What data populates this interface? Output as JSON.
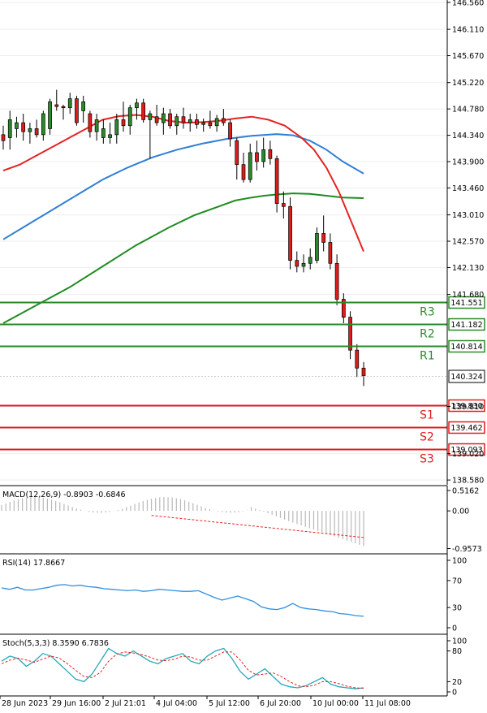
{
  "chart_data": [
    {
      "type": "candlestick",
      "title": "",
      "y_ticks": [
        "146.560",
        "146.110",
        "145.670",
        "145.220",
        "144.780",
        "144.340",
        "143.900",
        "143.460",
        "143.010",
        "142.570",
        "142.130",
        "141.680",
        "139.810",
        "139.020",
        "138.580"
      ],
      "ylim": [
        138.5,
        146.6
      ],
      "x_labels": [
        "28 Jun 2023",
        "29 Jun 16:00",
        "2 Jul 21:01",
        "4 Jul 04:00",
        "5 Jul 12:00",
        "6 Jul 20:00",
        "10 Jul 00:00",
        "11 Jul 08:00"
      ],
      "candles": [
        {
          "o": 144.35,
          "h": 144.5,
          "l": 144.1,
          "c": 144.25
        },
        {
          "o": 144.3,
          "h": 144.75,
          "l": 144.1,
          "c": 144.6
        },
        {
          "o": 144.45,
          "h": 144.65,
          "l": 144.3,
          "c": 144.55
        },
        {
          "o": 144.55,
          "h": 144.7,
          "l": 144.25,
          "c": 144.4
        },
        {
          "o": 144.4,
          "h": 144.55,
          "l": 144.2,
          "c": 144.45
        },
        {
          "o": 144.45,
          "h": 144.6,
          "l": 144.3,
          "c": 144.35
        },
        {
          "o": 144.35,
          "h": 144.75,
          "l": 144.25,
          "c": 144.7
        },
        {
          "o": 144.45,
          "h": 144.95,
          "l": 144.35,
          "c": 144.9
        },
        {
          "o": 144.85,
          "h": 145.1,
          "l": 144.75,
          "c": 144.82
        },
        {
          "o": 144.82,
          "h": 144.85,
          "l": 144.6,
          "c": 144.8
        },
        {
          "o": 144.8,
          "h": 145.05,
          "l": 144.7,
          "c": 144.95
        },
        {
          "o": 144.95,
          "h": 145.0,
          "l": 144.5,
          "c": 144.55
        },
        {
          "o": 144.75,
          "h": 145.0,
          "l": 144.55,
          "c": 144.9
        },
        {
          "o": 144.7,
          "h": 144.75,
          "l": 144.3,
          "c": 144.4
        },
        {
          "o": 144.4,
          "h": 144.7,
          "l": 144.25,
          "c": 144.6
        },
        {
          "o": 144.3,
          "h": 144.6,
          "l": 144.2,
          "c": 144.45
        },
        {
          "o": 144.3,
          "h": 144.55,
          "l": 144.2,
          "c": 144.35
        },
        {
          "o": 144.35,
          "h": 144.7,
          "l": 144.2,
          "c": 144.6
        },
        {
          "o": 144.6,
          "h": 144.9,
          "l": 144.4,
          "c": 144.5
        },
        {
          "o": 144.5,
          "h": 144.85,
          "l": 144.35,
          "c": 144.8
        },
        {
          "o": 144.8,
          "h": 144.95,
          "l": 144.6,
          "c": 144.88
        },
        {
          "o": 144.88,
          "h": 144.95,
          "l": 144.55,
          "c": 144.6
        },
        {
          "o": 144.6,
          "h": 144.75,
          "l": 143.95,
          "c": 144.7
        },
        {
          "o": 144.65,
          "h": 144.85,
          "l": 144.5,
          "c": 144.55
        },
        {
          "o": 144.55,
          "h": 144.8,
          "l": 144.35,
          "c": 144.7
        },
        {
          "o": 144.7,
          "h": 144.78,
          "l": 144.45,
          "c": 144.5
        },
        {
          "o": 144.5,
          "h": 144.7,
          "l": 144.35,
          "c": 144.65
        },
        {
          "o": 144.65,
          "h": 144.8,
          "l": 144.45,
          "c": 144.55
        },
        {
          "o": 144.55,
          "h": 144.7,
          "l": 144.4,
          "c": 144.6
        },
        {
          "o": 144.6,
          "h": 144.7,
          "l": 144.45,
          "c": 144.52
        },
        {
          "o": 144.52,
          "h": 144.62,
          "l": 144.4,
          "c": 144.55
        },
        {
          "o": 144.55,
          "h": 144.75,
          "l": 144.45,
          "c": 144.5
        },
        {
          "o": 144.5,
          "h": 144.68,
          "l": 144.4,
          "c": 144.62
        },
        {
          "o": 144.62,
          "h": 144.78,
          "l": 144.5,
          "c": 144.55
        },
        {
          "o": 144.55,
          "h": 144.6,
          "l": 144.15,
          "c": 144.28
        },
        {
          "o": 144.25,
          "h": 144.3,
          "l": 143.6,
          "c": 143.85
        },
        {
          "o": 143.85,
          "h": 144.05,
          "l": 143.55,
          "c": 143.6
        },
        {
          "o": 143.6,
          "h": 144.2,
          "l": 143.55,
          "c": 144.05
        },
        {
          "o": 144.05,
          "h": 144.25,
          "l": 143.75,
          "c": 143.9
        },
        {
          "o": 143.9,
          "h": 144.3,
          "l": 143.8,
          "c": 144.1
        },
        {
          "o": 144.1,
          "h": 144.25,
          "l": 143.85,
          "c": 143.95
        },
        {
          "o": 143.95,
          "h": 144.0,
          "l": 143.05,
          "c": 143.2
        },
        {
          "o": 143.2,
          "h": 143.4,
          "l": 142.95,
          "c": 143.15
        },
        {
          "o": 143.15,
          "h": 143.3,
          "l": 142.1,
          "c": 142.25
        },
        {
          "o": 142.25,
          "h": 142.4,
          "l": 142.05,
          "c": 142.15
        },
        {
          "o": 142.15,
          "h": 142.35,
          "l": 142.05,
          "c": 142.2
        },
        {
          "o": 142.2,
          "h": 142.45,
          "l": 142.1,
          "c": 142.3
        },
        {
          "o": 142.25,
          "h": 142.8,
          "l": 142.2,
          "c": 142.7
        },
        {
          "o": 142.7,
          "h": 143.0,
          "l": 142.4,
          "c": 142.55
        },
        {
          "o": 142.55,
          "h": 142.7,
          "l": 142.1,
          "c": 142.2
        },
        {
          "o": 142.2,
          "h": 142.35,
          "l": 141.5,
          "c": 141.6
        },
        {
          "o": 141.6,
          "h": 141.7,
          "l": 141.2,
          "c": 141.3
        },
        {
          "o": 141.3,
          "h": 141.4,
          "l": 140.6,
          "c": 140.75
        },
        {
          "o": 140.75,
          "h": 140.85,
          "l": 140.3,
          "c": 140.45
        },
        {
          "o": 140.45,
          "h": 140.55,
          "l": 140.15,
          "c": 140.32
        }
      ],
      "ma_red": [
        [
          0,
          143.75
        ],
        [
          4,
          143.85
        ],
        [
          8,
          144.0
        ],
        [
          12,
          144.15
        ],
        [
          16,
          144.3
        ],
        [
          20,
          144.45
        ],
        [
          24,
          144.6
        ],
        [
          28,
          144.66
        ],
        [
          32,
          144.68
        ],
        [
          36,
          144.65
        ],
        [
          40,
          144.58
        ],
        [
          44,
          144.55
        ],
        [
          48,
          144.56
        ],
        [
          52,
          144.58
        ],
        [
          56,
          144.62
        ],
        [
          60,
          144.65
        ],
        [
          64,
          144.6
        ],
        [
          68,
          144.5
        ],
        [
          72,
          144.3
        ],
        [
          75,
          144.1
        ],
        [
          78,
          143.8
        ],
        [
          81,
          143.4
        ],
        [
          84,
          142.9
        ],
        [
          87,
          142.4
        ]
      ],
      "ma_blue": [
        [
          0,
          142.6
        ],
        [
          6,
          142.85
        ],
        [
          12,
          143.1
        ],
        [
          18,
          143.35
        ],
        [
          24,
          143.6
        ],
        [
          30,
          143.8
        ],
        [
          36,
          143.97
        ],
        [
          42,
          144.1
        ],
        [
          48,
          144.2
        ],
        [
          54,
          144.28
        ],
        [
          60,
          144.33
        ],
        [
          66,
          144.36
        ],
        [
          70,
          144.34
        ],
        [
          74,
          144.25
        ],
        [
          78,
          144.1
        ],
        [
          82,
          143.9
        ],
        [
          87,
          143.7
        ]
      ],
      "ma_green": [
        [
          0,
          141.2
        ],
        [
          8,
          141.5
        ],
        [
          16,
          141.8
        ],
        [
          24,
          142.15
        ],
        [
          32,
          142.5
        ],
        [
          40,
          142.8
        ],
        [
          46,
          143.0
        ],
        [
          52,
          143.15
        ],
        [
          56,
          143.25
        ],
        [
          60,
          143.3
        ],
        [
          63,
          143.33
        ],
        [
          66,
          143.35
        ],
        [
          70,
          143.37
        ],
        [
          74,
          143.36
        ],
        [
          78,
          143.33
        ],
        [
          82,
          143.3
        ],
        [
          87,
          143.29
        ]
      ],
      "levels": [
        {
          "name": "R3",
          "value": 141.551,
          "label": "141.551",
          "color": "#2a8a2a"
        },
        {
          "name": "R2",
          "value": 141.182,
          "label": "141.182",
          "color": "#2a8a2a"
        },
        {
          "name": "R1",
          "value": 140.814,
          "label": "140.814",
          "color": "#2a8a2a"
        },
        {
          "name": "S1",
          "value": 139.83,
          "label": "139.830",
          "color": "#e01b1b"
        },
        {
          "name": "S2",
          "value": 139.462,
          "label": "139.462",
          "color": "#e01b1b"
        },
        {
          "name": "S3",
          "value": 139.093,
          "label": "139.093",
          "color": "#e01b1b"
        }
      ],
      "current_price": "140.324"
    },
    {
      "type": "histogram",
      "title": "MACD(12,26,9) -0.8903 -0.6846",
      "y_ticks": [
        "0.5162",
        "0.00",
        "-0.9573"
      ],
      "ylim": [
        -1.05,
        0.6
      ]
    },
    {
      "type": "line",
      "title": "RSI(14) 17.8667",
      "y_ticks": [
        "100",
        "70",
        "30",
        "0"
      ],
      "ylim": [
        0,
        100
      ],
      "series": [
        {
          "values": [
            59,
            57,
            60,
            56,
            56,
            58,
            60,
            63,
            64,
            62,
            63,
            61,
            60,
            58,
            57,
            56,
            55,
            56,
            54,
            55,
            57,
            56,
            55,
            54,
            54,
            55,
            50,
            45,
            41,
            44,
            47,
            43,
            39,
            31,
            28,
            27,
            30,
            36,
            30,
            28,
            27,
            25,
            24,
            21,
            20,
            18,
            17
          ]
        }
      ]
    },
    {
      "type": "line",
      "title": "Stoch(5,3,3) 8.3590 6.7836",
      "y_ticks": [
        "100",
        "80",
        "20",
        "0"
      ],
      "ylim": [
        0,
        100
      ],
      "series": [
        {
          "values": [
            60,
            70,
            65,
            50,
            60,
            75,
            70,
            55,
            40,
            25,
            20,
            35,
            60,
            85,
            75,
            70,
            80,
            70,
            60,
            55,
            65,
            70,
            75,
            60,
            55,
            70,
            80,
            85,
            65,
            40,
            25,
            35,
            45,
            30,
            15,
            10,
            8,
            12,
            20,
            28,
            15,
            10,
            8,
            6,
            8
          ]
        },
        {
          "values": [
            55,
            62,
            66,
            62,
            58,
            64,
            70,
            66,
            55,
            42,
            30,
            28,
            38,
            60,
            74,
            78,
            76,
            73,
            68,
            62,
            61,
            64,
            70,
            68,
            62,
            62,
            70,
            78,
            78,
            62,
            42,
            33,
            35,
            37,
            30,
            20,
            12,
            10,
            13,
            20,
            20,
            16,
            11,
            8,
            7
          ]
        }
      ]
    }
  ]
}
